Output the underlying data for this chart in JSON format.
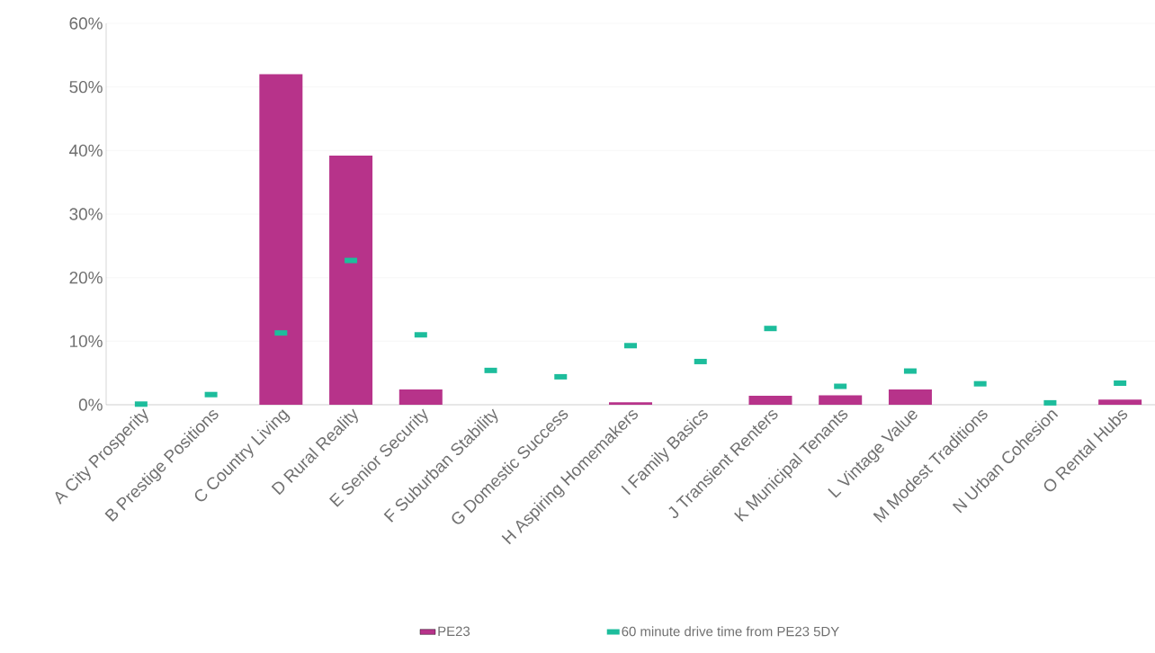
{
  "chart_data": {
    "type": "bar",
    "categories": [
      "A City Prosperity",
      "B Prestige Positions",
      "C Country Living",
      "D Rural Reality",
      "E Senior Security",
      "F Suburban Stability",
      "G Domestic Success",
      "H Aspiring Homemakers",
      "I Family Basics",
      "J Transient Renters",
      "K Municipal Tenants",
      "L Vintage Value",
      "M Modest Traditions",
      "N Urban Cohesion",
      "O Rental Hubs"
    ],
    "series": [
      {
        "name": "PE23",
        "color": "#b7338a",
        "values": [
          0,
          0,
          52.0,
          39.2,
          2.4,
          0,
          0,
          0.4,
          0,
          1.4,
          1.5,
          2.4,
          0,
          0,
          0.8
        ]
      },
      {
        "name": "60 minute drive time from PE23 5DY",
        "type": "scatter",
        "color": "#1dbd9c",
        "values": [
          0.1,
          1.6,
          11.3,
          22.7,
          11.0,
          5.4,
          4.4,
          9.3,
          6.8,
          12.0,
          2.9,
          5.3,
          3.3,
          0.3,
          3.4
        ]
      }
    ],
    "ylim": [
      0,
      60
    ],
    "yticks": [
      {
        "value": 0,
        "label": "0%"
      },
      {
        "value": 10,
        "label": "10%"
      },
      {
        "value": 20,
        "label": "20%"
      },
      {
        "value": 30,
        "label": "30%"
      },
      {
        "value": 40,
        "label": "40%"
      },
      {
        "value": 50,
        "label": "50%"
      },
      {
        "value": 60,
        "label": "60%"
      }
    ],
    "grid": "y",
    "legend": "bottom"
  }
}
